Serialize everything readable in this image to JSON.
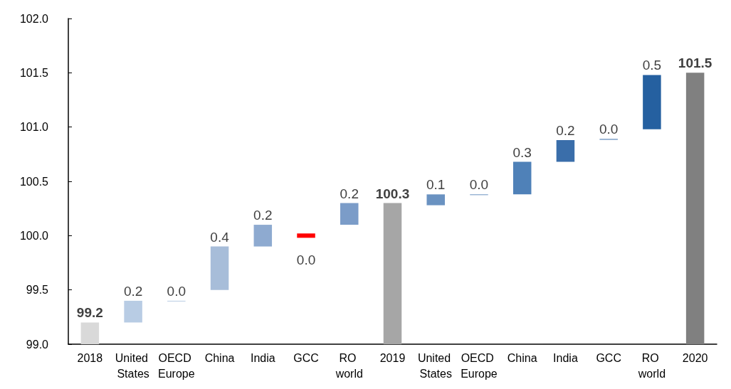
{
  "chart_data": {
    "type": "bar",
    "categories": [
      "2018",
      "United States",
      "OECD Europe",
      "China",
      "India",
      "GCC",
      "RO world",
      "2019",
      "United States",
      "OECD Europe",
      "China",
      "India",
      "GCC",
      "RO world",
      "2020"
    ],
    "series": [
      {
        "values": [
          99.2,
          null,
          null,
          null,
          null,
          null,
          null,
          100.3,
          null,
          null,
          null,
          null,
          null,
          null,
          101.5
        ],
        "colors": [
          "#d9d9d9",
          null,
          null,
          null,
          null,
          null,
          null,
          "#a6a6a6",
          null,
          null,
          null,
          null,
          null,
          null,
          "#808080"
        ],
        "value_labels": [
          "99.2",
          null,
          null,
          null,
          null,
          null,
          null,
          "100.3",
          null,
          null,
          null,
          null,
          null,
          null,
          "101.5"
        ]
      },
      {
        "values": [
          null,
          0.2,
          0.0,
          0.4,
          0.2,
          -0.04,
          0.2,
          null,
          0.1,
          0.0,
          0.3,
          0.2,
          0.0,
          0.5,
          null
        ],
        "base": [
          null,
          99.2,
          99.4,
          99.5,
          99.9,
          100.02,
          100.1,
          null,
          100.28,
          100.38,
          100.38,
          100.68,
          100.89,
          100.98,
          null
        ],
        "colors": [
          null,
          "#b8cce4",
          "#b8cce4",
          "#a7bdd9",
          "#8eaad0",
          "#ff0000",
          "#7b9cc8",
          null,
          "#6a92c1",
          "#6a92c1",
          "#4f81b8",
          "#3a6eaa",
          "#3a6eaa",
          "#2560a0",
          null
        ],
        "value_labels": [
          null,
          "0.2",
          "0.0",
          "0.4",
          "0.2",
          "0.0",
          "0.2",
          null,
          "0.1",
          "0.0",
          "0.3",
          "0.2",
          "0.0",
          "0.5",
          null
        ]
      }
    ],
    "ylim": [
      99.0,
      102.0
    ],
    "yticks": [
      {
        "value": 99,
        "label": "99.0"
      },
      {
        "value": 99.5,
        "label": "99.5"
      },
      {
        "value": 100,
        "label": "100.0"
      },
      {
        "value": 100.5,
        "label": "100.5"
      },
      {
        "value": 101,
        "label": "101.0"
      },
      {
        "value": 101.5,
        "label": "101.5"
      },
      {
        "value": 102,
        "label": "102.0"
      }
    ],
    "grid": false
  }
}
